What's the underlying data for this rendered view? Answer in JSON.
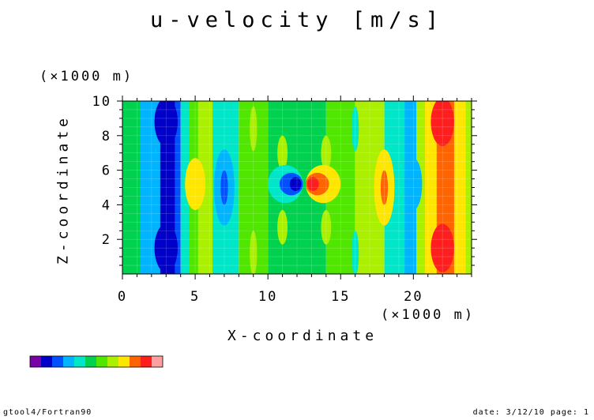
{
  "chart_data": {
    "type": "heatmap",
    "title": "u-velocity [m/s]",
    "xlabel": "X-coordinate",
    "ylabel": "Z-coordinate",
    "x_unit": "(×1000 m)",
    "y_unit": "(×1000 m)",
    "xlim": [
      0,
      24
    ],
    "ylim": [
      0,
      10
    ],
    "x_ticks": [
      0,
      5,
      10,
      15,
      20
    ],
    "y_ticks": [
      2,
      4,
      6,
      8,
      10
    ],
    "colorbar_colors": [
      "#7a00a8",
      "#0000c8",
      "#0050ff",
      "#00b4ff",
      "#00e6c8",
      "#00d250",
      "#50e600",
      "#aaf000",
      "#ffe600",
      "#ff6400",
      "#ff1e1e",
      "#ffa0a0"
    ],
    "bands": [
      {
        "x0": 0,
        "x1": 1.2,
        "color": "#00d250"
      },
      {
        "x0": 1.2,
        "x1": 1.8,
        "color": "#00b4ff"
      },
      {
        "x0": 1.8,
        "x1": 2.6,
        "color": "#00b4ff"
      },
      {
        "x0": 2.6,
        "x1": 3.6,
        "color": "#0000c8"
      },
      {
        "x0": 3.6,
        "x1": 4.0,
        "color": "#0050ff"
      },
      {
        "x0": 4.0,
        "x1": 4.6,
        "color": "#00e6c8"
      },
      {
        "x0": 4.6,
        "x1": 5.2,
        "color": "#50e600"
      },
      {
        "x0": 5.2,
        "x1": 6.2,
        "color": "#aaf000"
      },
      {
        "x0": 6.2,
        "x1": 8.0,
        "color": "#00e6c8"
      },
      {
        "x0": 8.0,
        "x1": 10.0,
        "color": "#50e600"
      },
      {
        "x0": 10.0,
        "x1": 14.0,
        "color": "#00d250"
      },
      {
        "x0": 14.0,
        "x1": 16.0,
        "color": "#50e600"
      },
      {
        "x0": 16.0,
        "x1": 18.0,
        "color": "#aaf000"
      },
      {
        "x0": 18.0,
        "x1": 19.4,
        "color": "#00e6c8"
      },
      {
        "x0": 19.4,
        "x1": 20.2,
        "color": "#00b4ff"
      },
      {
        "x0": 20.2,
        "x1": 20.8,
        "color": "#aaf000"
      },
      {
        "x0": 20.8,
        "x1": 21.6,
        "color": "#ffe600"
      },
      {
        "x0": 21.6,
        "x1": 22.8,
        "color": "#ff6400"
      },
      {
        "x0": 22.8,
        "x1": 23.6,
        "color": "#ffe600"
      },
      {
        "x0": 23.6,
        "x1": 24,
        "color": "#aaf000"
      }
    ],
    "blobs": [
      {
        "cx": 3.0,
        "cy": 8.8,
        "rx": 0.8,
        "ry": 1.4,
        "color": "#0000c8"
      },
      {
        "cx": 3.0,
        "cy": 1.5,
        "rx": 0.8,
        "ry": 1.4,
        "color": "#0000c8"
      },
      {
        "cx": 5.0,
        "cy": 5.2,
        "rx": 0.7,
        "ry": 1.5,
        "color": "#ffe600"
      },
      {
        "cx": 7.0,
        "cy": 5.0,
        "rx": 0.7,
        "ry": 2.2,
        "color": "#00b4ff"
      },
      {
        "cx": 7.0,
        "cy": 5.0,
        "rx": 0.25,
        "ry": 1.0,
        "color": "#0050ff"
      },
      {
        "cx": 9.0,
        "cy": 8.4,
        "rx": 0.25,
        "ry": 1.3,
        "color": "#aaf000"
      },
      {
        "cx": 9.0,
        "cy": 1.2,
        "rx": 0.25,
        "ry": 1.3,
        "color": "#aaf000"
      },
      {
        "cx": 11.0,
        "cy": 7.0,
        "rx": 0.35,
        "ry": 1.0,
        "color": "#aaf000"
      },
      {
        "cx": 11.0,
        "cy": 2.7,
        "rx": 0.35,
        "ry": 1.0,
        "color": "#aaf000"
      },
      {
        "cx": 11.2,
        "cy": 5.2,
        "rx": 1.2,
        "ry": 1.1,
        "color": "#00e6c8"
      },
      {
        "cx": 11.6,
        "cy": 5.2,
        "rx": 0.8,
        "ry": 0.65,
        "color": "#0050ff"
      },
      {
        "cx": 11.9,
        "cy": 5.2,
        "rx": 0.4,
        "ry": 0.4,
        "color": "#0000c8"
      },
      {
        "cx": 14.0,
        "cy": 7.0,
        "rx": 0.35,
        "ry": 1.0,
        "color": "#aaf000"
      },
      {
        "cx": 14.0,
        "cy": 2.7,
        "rx": 0.35,
        "ry": 1.0,
        "color": "#aaf000"
      },
      {
        "cx": 13.8,
        "cy": 5.2,
        "rx": 1.2,
        "ry": 1.1,
        "color": "#ffe600"
      },
      {
        "cx": 13.4,
        "cy": 5.2,
        "rx": 0.8,
        "ry": 0.65,
        "color": "#ff6400"
      },
      {
        "cx": 13.1,
        "cy": 5.2,
        "rx": 0.4,
        "ry": 0.4,
        "color": "#ff1e1e"
      },
      {
        "cx": 16.0,
        "cy": 8.4,
        "rx": 0.25,
        "ry": 1.3,
        "color": "#00e6c8"
      },
      {
        "cx": 16.0,
        "cy": 1.2,
        "rx": 0.25,
        "ry": 1.3,
        "color": "#00e6c8"
      },
      {
        "cx": 18.0,
        "cy": 5.0,
        "rx": 0.7,
        "ry": 2.2,
        "color": "#ffe600"
      },
      {
        "cx": 18.0,
        "cy": 5.0,
        "rx": 0.25,
        "ry": 1.0,
        "color": "#ff6400"
      },
      {
        "cx": 20.0,
        "cy": 5.2,
        "rx": 0.6,
        "ry": 1.5,
        "color": "#00b4ff"
      },
      {
        "cx": 22.0,
        "cy": 8.8,
        "rx": 0.8,
        "ry": 1.4,
        "color": "#ff1e1e"
      },
      {
        "cx": 22.0,
        "cy": 1.5,
        "rx": 0.8,
        "ry": 1.4,
        "color": "#ff1e1e"
      }
    ]
  },
  "footer": {
    "left": "gtool4/Fortran90",
    "right": "date: 3/12/10 page: 1"
  }
}
